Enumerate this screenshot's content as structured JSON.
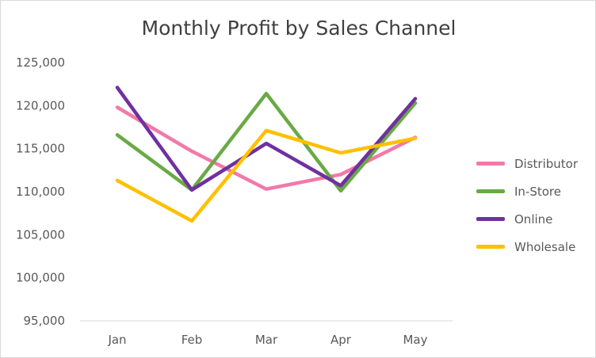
{
  "chart_data": {
    "type": "line",
    "title": "Monthly Profit by Sales Channel",
    "xlabel": "",
    "ylabel": "",
    "categories": [
      "Jan",
      "Feb",
      "Mar",
      "Apr",
      "May"
    ],
    "ylim": [
      95000,
      125000
    ],
    "yticks": [
      95000,
      100000,
      105000,
      110000,
      115000,
      120000,
      125000
    ],
    "ytick_labels": [
      "95,000",
      "100,000",
      "105,000",
      "110,000",
      "115,000",
      "120,000",
      "125,000"
    ],
    "grid": false,
    "legend_position": "right",
    "series": [
      {
        "name": "Distributor",
        "color": "#f279a8",
        "values": [
          119800,
          114700,
          110300,
          112000,
          116300
        ]
      },
      {
        "name": "In-Store",
        "color": "#6aaa45",
        "values": [
          116600,
          110200,
          121400,
          110100,
          120300
        ]
      },
      {
        "name": "Online",
        "color": "#7030a0",
        "values": [
          122100,
          110200,
          115600,
          110700,
          120800
        ]
      },
      {
        "name": "Wholesale",
        "color": "#ffc000",
        "values": [
          111300,
          106600,
          117100,
          114500,
          116200
        ]
      }
    ]
  }
}
